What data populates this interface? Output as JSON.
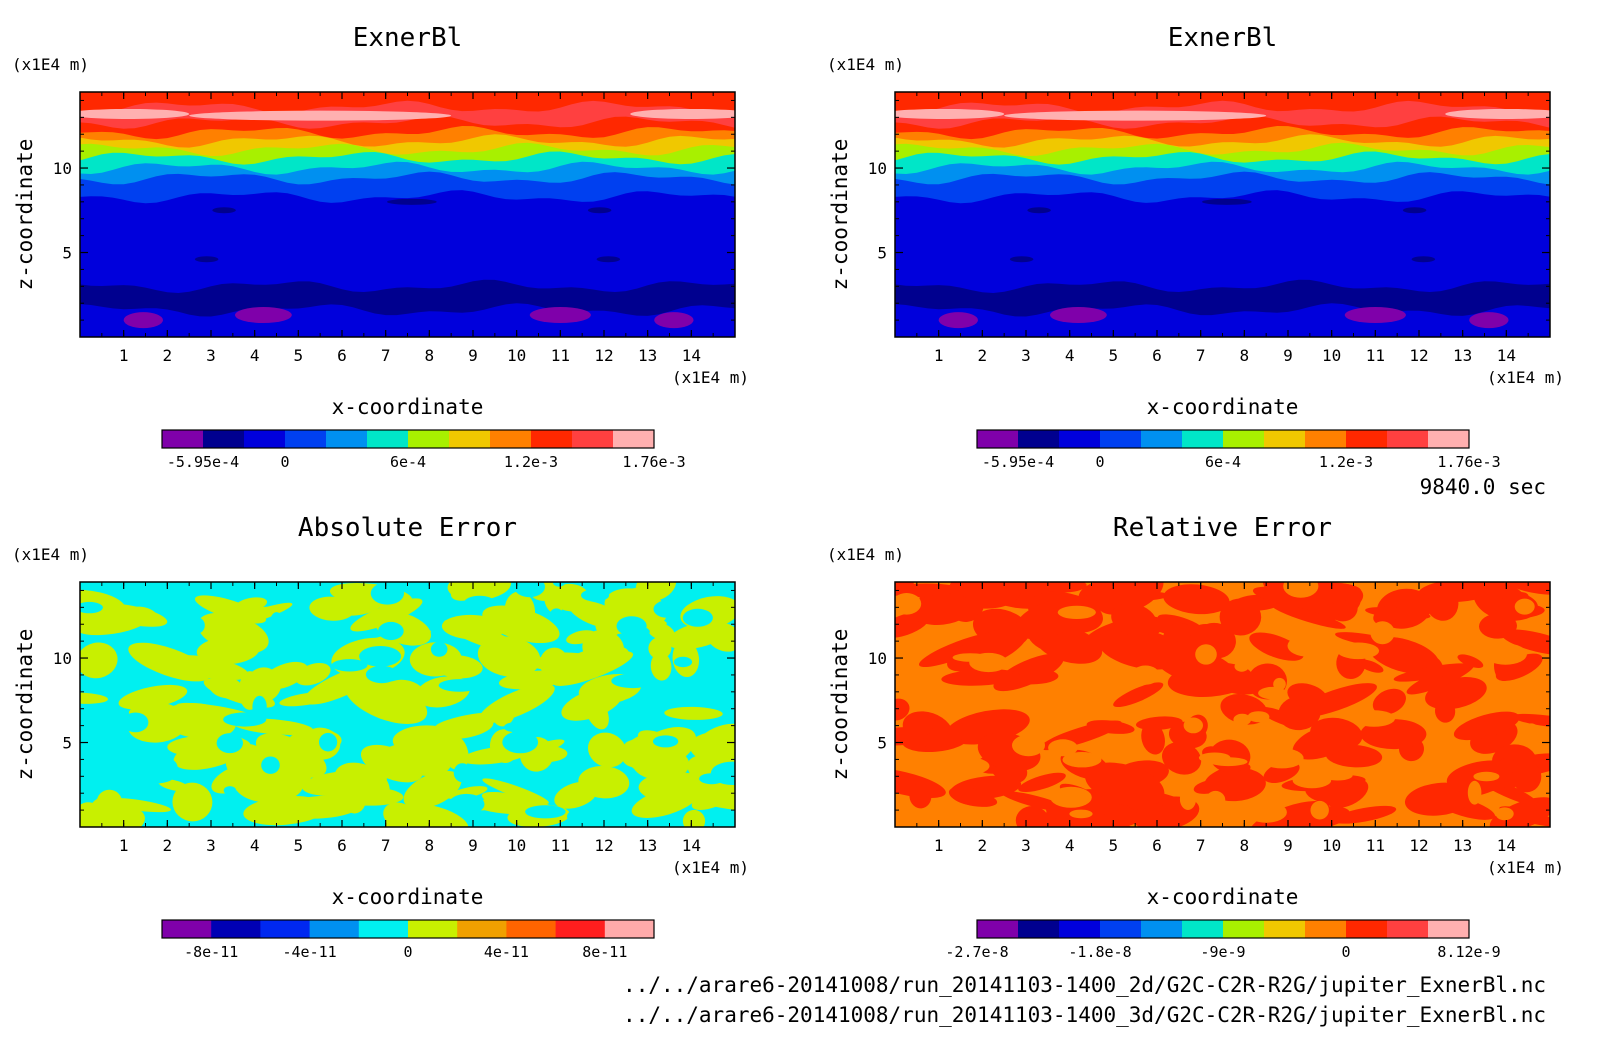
{
  "time_label": "9840.0 sec",
  "footer": {
    "file1": "../../arare6-20141008/run_20141103-1400_2d/G2C-C2R-R2G/jupiter_ExnerBl.nc",
    "file2": "../../arare6-20141008/run_20141103-1400_3d/G2C-C2R-R2G/jupiter_ExnerBl.nc"
  },
  "chart_data": [
    {
      "type": "heatmap",
      "title": "ExnerBl",
      "xlabel": "x-coordinate",
      "ylabel": "z-coordinate",
      "x_unit": "(x1E4 m)",
      "y_unit": "(x1E4 m)",
      "xlim": [
        0,
        15
      ],
      "ylim": [
        0,
        14.5
      ],
      "x_ticks": [
        "1",
        "2",
        "3",
        "4",
        "5",
        "6",
        "7",
        "8",
        "9",
        "10",
        "11",
        "12",
        "13",
        "14"
      ],
      "y_ticks": [
        "5",
        "10"
      ],
      "colorbar": {
        "colors": [
          "#7f00aa",
          "#00008f",
          "#0000dc",
          "#0040f0",
          "#0090f0",
          "#00e6c8",
          "#a8f000",
          "#f0c800",
          "#ff8000",
          "#ff2800",
          "#ff4040",
          "#ffb0b0"
        ],
        "labels": [
          "-5.95e-4",
          "0",
          "6e-4",
          "1.2e-3",
          "1.76e-3"
        ],
        "label_positions": [
          1,
          3,
          6,
          9,
          12
        ]
      },
      "field": "layers"
    },
    {
      "type": "heatmap",
      "title": "ExnerBl",
      "xlabel": "x-coordinate",
      "ylabel": "z-coordinate",
      "x_unit": "(x1E4 m)",
      "y_unit": "(x1E4 m)",
      "xlim": [
        0,
        15
      ],
      "ylim": [
        0,
        14.5
      ],
      "x_ticks": [
        "1",
        "2",
        "3",
        "4",
        "5",
        "6",
        "7",
        "8",
        "9",
        "10",
        "11",
        "12",
        "13",
        "14"
      ],
      "y_ticks": [
        "5",
        "10"
      ],
      "colorbar": {
        "colors": [
          "#7f00aa",
          "#00008f",
          "#0000dc",
          "#0040f0",
          "#0090f0",
          "#00e6c8",
          "#a8f000",
          "#f0c800",
          "#ff8000",
          "#ff2800",
          "#ff4040",
          "#ffb0b0"
        ],
        "labels": [
          "-5.95e-4",
          "0",
          "6e-4",
          "1.2e-3",
          "1.76e-3"
        ],
        "label_positions": [
          1,
          3,
          6,
          9,
          12
        ]
      },
      "field": "layers"
    },
    {
      "type": "heatmap",
      "title": "Absolute Error",
      "xlabel": "x-coordinate",
      "ylabel": "z-coordinate",
      "x_unit": "(x1E4 m)",
      "y_unit": "(x1E4 m)",
      "xlim": [
        0,
        15
      ],
      "ylim": [
        0,
        14.5
      ],
      "x_ticks": [
        "1",
        "2",
        "3",
        "4",
        "5",
        "6",
        "7",
        "8",
        "9",
        "10",
        "11",
        "12",
        "13",
        "14"
      ],
      "y_ticks": [
        "5",
        "10"
      ],
      "colorbar": {
        "colors": [
          "#7f00aa",
          "#0000b4",
          "#0028f0",
          "#0090f0",
          "#00f0f0",
          "#c8f000",
          "#f0a000",
          "#ff6400",
          "#ff1e1e",
          "#ffaaaa"
        ],
        "labels": [
          "-8e-11",
          "-4e-11",
          "0",
          "4e-11",
          "8e-11"
        ],
        "label_positions": [
          1,
          3,
          5,
          7,
          9
        ]
      },
      "field": "noise",
      "noise_colors": [
        "#00f0f0",
        "#c8f000"
      ]
    },
    {
      "type": "heatmap",
      "title": "Relative Error",
      "xlabel": "x-coordinate",
      "ylabel": "z-coordinate",
      "x_unit": "(x1E4 m)",
      "y_unit": "(x1E4 m)",
      "xlim": [
        0,
        15
      ],
      "ylim": [
        0,
        14.5
      ],
      "x_ticks": [
        "1",
        "2",
        "3",
        "4",
        "5",
        "6",
        "7",
        "8",
        "9",
        "10",
        "11",
        "12",
        "13",
        "14"
      ],
      "y_ticks": [
        "5",
        "10"
      ],
      "colorbar": {
        "colors": [
          "#7f00aa",
          "#00008f",
          "#0000dc",
          "#0040f0",
          "#0090f0",
          "#00e6c8",
          "#a8f000",
          "#f0c800",
          "#ff8000",
          "#ff2800",
          "#ff4040",
          "#ffb0b0"
        ],
        "labels": [
          "-2.7e-8",
          "-1.8e-8",
          "-9e-9",
          "0",
          "8.12e-9"
        ],
        "label_positions": [
          0,
          3,
          6,
          9,
          12
        ]
      },
      "field": "noise",
      "noise_colors": [
        "#ff8000",
        "#ff2800"
      ]
    }
  ]
}
